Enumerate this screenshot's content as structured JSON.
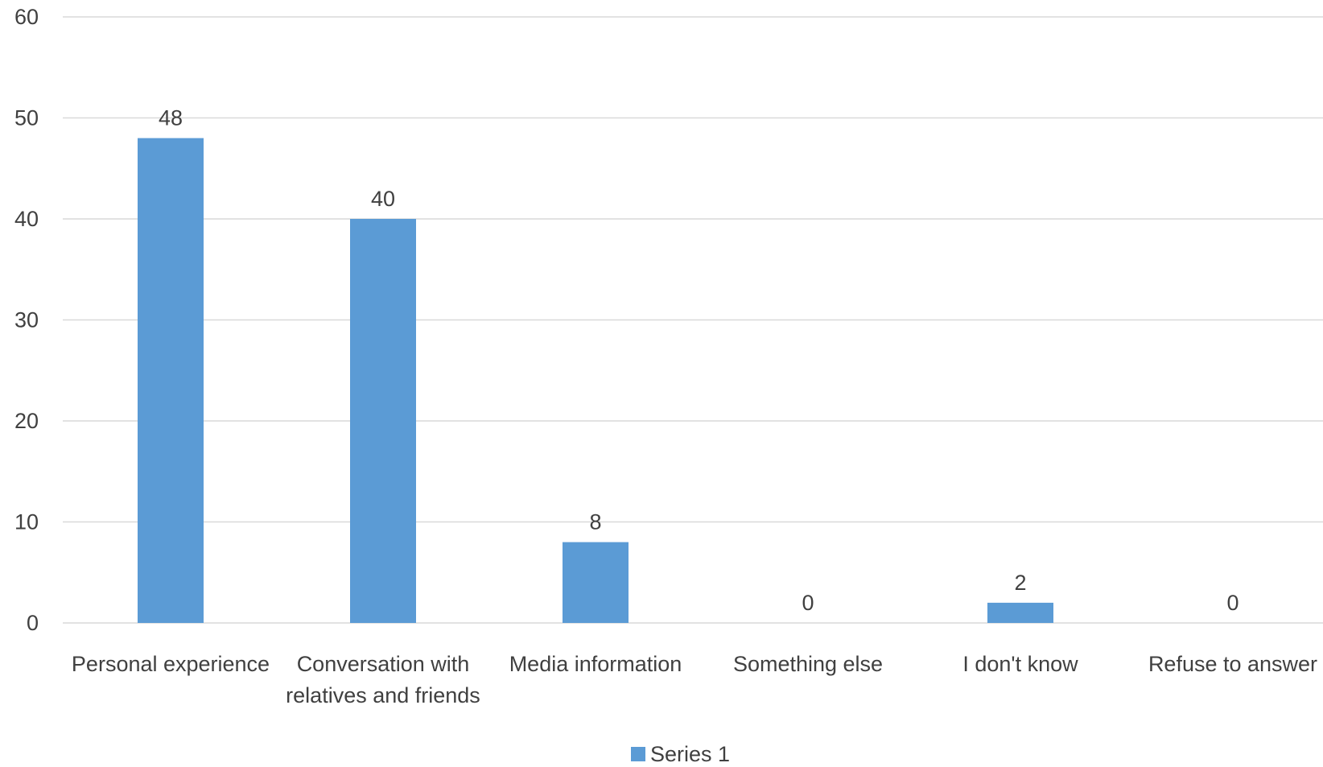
{
  "chart_data": {
    "type": "bar",
    "categories": [
      "Personal experience",
      "Conversation with relatives and friends",
      "Media information",
      "Something else",
      "I don't know",
      "Refuse to answer"
    ],
    "category_lines": [
      [
        "Personal experience"
      ],
      [
        "Conversation with",
        "relatives and friends"
      ],
      [
        "Media information"
      ],
      [
        "Something else"
      ],
      [
        "I don't know"
      ],
      [
        "Refuse to answer"
      ]
    ],
    "series": [
      {
        "name": "Series 1",
        "values": [
          48,
          40,
          8,
          0,
          2,
          0
        ],
        "color": "#5b9bd5"
      }
    ],
    "data_labels": [
      "48",
      "40",
      "8",
      "0",
      "2",
      "0"
    ],
    "ylim": [
      0,
      60
    ],
    "yticks": [
      0,
      10,
      20,
      30,
      40,
      50,
      60
    ],
    "ytick_labels": [
      "0",
      "10",
      "20",
      "30",
      "40",
      "50",
      "60"
    ],
    "grid": true,
    "gridline_color": "#d9d9d9",
    "text_color": "#404040",
    "legend_position": "bottom",
    "title": "",
    "xlabel": "",
    "ylabel": ""
  }
}
